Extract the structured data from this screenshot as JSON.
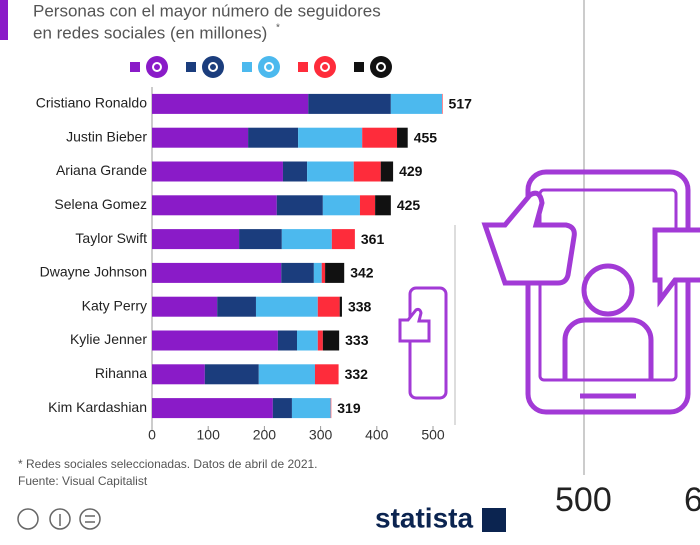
{
  "chart_data": {
    "type": "stacked-bar-horizontal",
    "title_lines": [
      "Personas con el mayor número de seguidores",
      "en redes sociales (en millones)"
    ],
    "title_mark": "*",
    "categories": [
      "Cristiano Ronaldo",
      "Justin Bieber",
      "Ariana Grande",
      "Selena Gomez",
      "Taylor Swift",
      "Dwayne Johnson",
      "Katy Perry",
      "Kylie Jenner",
      "Rihanna",
      "Kim Kardashian"
    ],
    "series": [
      {
        "color": "#8a1bc8",
        "values": [
          278,
          171,
          233,
          222,
          155,
          230,
          116,
          224,
          94,
          215
        ]
      },
      {
        "color": "#1b3d7d",
        "values": [
          147,
          89,
          43,
          82,
          76,
          58,
          69,
          34,
          96,
          34
        ]
      },
      {
        "color": "#4cb9ee",
        "values": [
          91,
          114,
          83,
          66,
          89,
          14,
          110,
          37,
          100,
          69
        ]
      },
      {
        "color": "#fe2c3b",
        "values": [
          1,
          62,
          48,
          27,
          41,
          6,
          39,
          9,
          42,
          1
        ]
      },
      {
        "color": "#111111",
        "values": [
          0,
          19,
          22,
          28,
          0,
          34,
          4,
          29,
          0,
          0
        ]
      }
    ],
    "totals": [
      517,
      455,
      429,
      425,
      361,
      342,
      338,
      333,
      332,
      319
    ],
    "xlim": [
      0,
      500
    ],
    "xticks": [
      0,
      100,
      200,
      300,
      400,
      500
    ],
    "note": "* Redes sociales seleccionadas. Datos de abril de 2021.",
    "source": "Fuente: Visual Capitalist",
    "brand": "statista",
    "background_text": [
      "500",
      "6"
    ]
  }
}
